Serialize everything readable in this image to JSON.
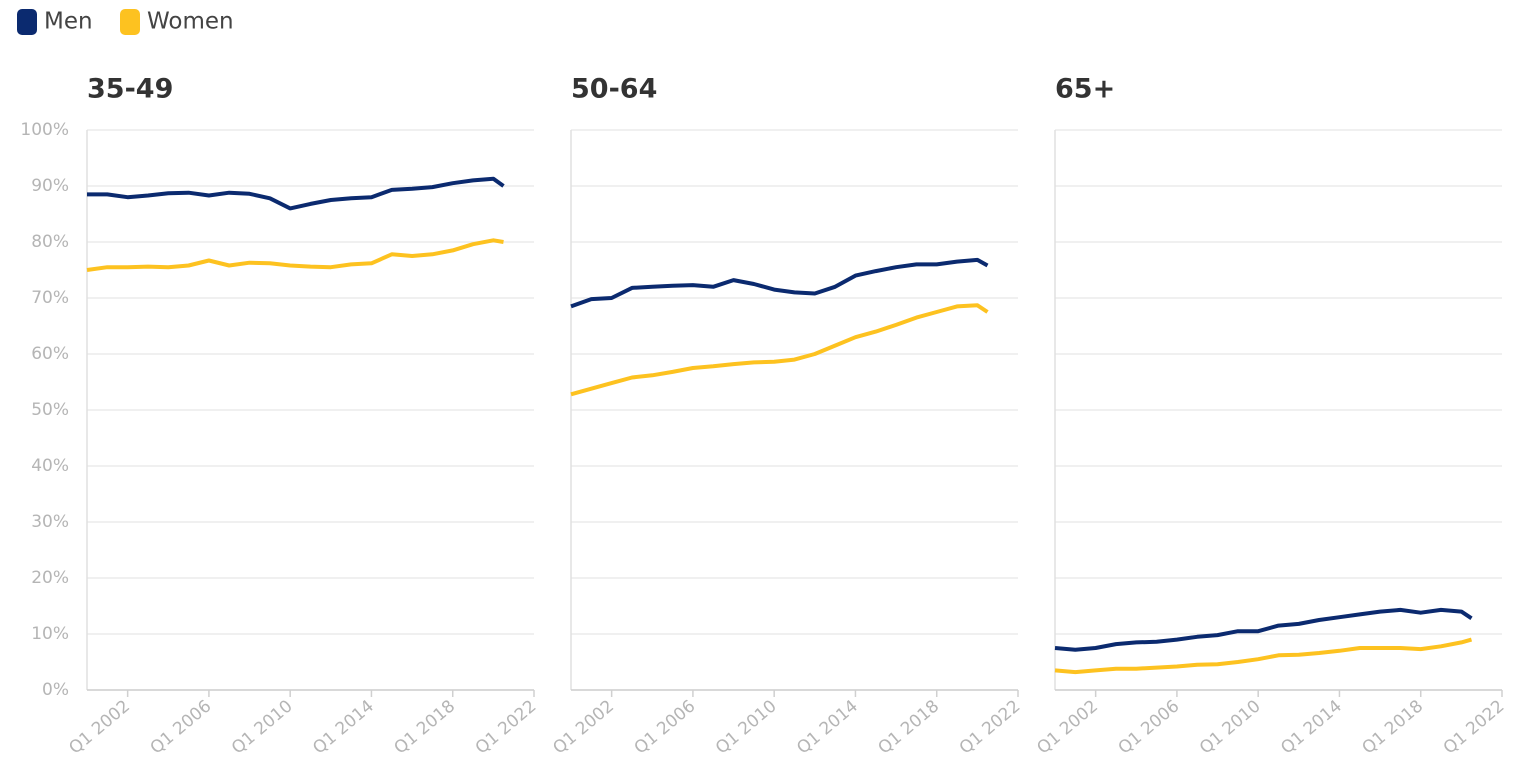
{
  "chart_data": [
    {
      "type": "line",
      "title": "35-49",
      "x": [
        2000,
        2001,
        2002,
        2003,
        2004,
        2005,
        2006,
        2007,
        2008,
        2009,
        2010,
        2011,
        2012,
        2013,
        2014,
        2015,
        2016,
        2017,
        2018,
        2019,
        2020,
        2020.5
      ],
      "series": [
        {
          "name": "Men",
          "color": "#0b2a6f",
          "values": [
            88.5,
            88.5,
            88,
            88.3,
            88.7,
            88.8,
            88.3,
            88.8,
            88.6,
            87.8,
            86,
            86.8,
            87.5,
            87.8,
            88,
            89.3,
            89.5,
            89.8,
            90.5,
            91,
            91.3,
            90
          ]
        },
        {
          "name": "Women",
          "color": "#fdc220",
          "values": [
            75,
            75.5,
            75.5,
            75.6,
            75.5,
            75.8,
            76.7,
            75.8,
            76.3,
            76.2,
            75.8,
            75.6,
            75.5,
            76,
            76.2,
            77.8,
            77.5,
            77.8,
            78.5,
            79.6,
            80.3,
            80
          ]
        }
      ],
      "xlim": [
        2000,
        2022
      ],
      "xticks": [
        {
          "value": 2002,
          "label": "Q1 2002"
        },
        {
          "value": 2006,
          "label": "Q1 2006"
        },
        {
          "value": 2010,
          "label": "Q1 2010"
        },
        {
          "value": 2014,
          "label": "Q1 2014"
        },
        {
          "value": 2018,
          "label": "Q1 2018"
        },
        {
          "value": 2022,
          "label": "Q1 2022"
        }
      ],
      "ylim": [
        0,
        100
      ],
      "yticks": [
        {
          "value": 0,
          "label": "0%"
        },
        {
          "value": 10,
          "label": "10%"
        },
        {
          "value": 20,
          "label": "20%"
        },
        {
          "value": 30,
          "label": "30%"
        },
        {
          "value": 40,
          "label": "40%"
        },
        {
          "value": 50,
          "label": "50%"
        },
        {
          "value": 60,
          "label": "60%"
        },
        {
          "value": 70,
          "label": "70%"
        },
        {
          "value": 80,
          "label": "80%"
        },
        {
          "value": 90,
          "label": "90%"
        },
        {
          "value": 100,
          "label": "100%"
        }
      ],
      "grid": true
    },
    {
      "type": "line",
      "title": "50-64",
      "x": [
        2000,
        2001,
        2002,
        2003,
        2004,
        2005,
        2006,
        2007,
        2008,
        2009,
        2010,
        2011,
        2012,
        2013,
        2014,
        2015,
        2016,
        2017,
        2018,
        2019,
        2020,
        2020.5
      ],
      "series": [
        {
          "name": "Men",
          "color": "#0b2a6f",
          "values": [
            68.5,
            69.8,
            70,
            71.8,
            72,
            72.2,
            72.3,
            72,
            73.2,
            72.5,
            71.5,
            71,
            70.8,
            72,
            74,
            74.8,
            75.5,
            76,
            76,
            76.5,
            76.8,
            75.8
          ]
        },
        {
          "name": "Women",
          "color": "#fdc220",
          "values": [
            52.8,
            53.8,
            54.8,
            55.8,
            56.2,
            56.8,
            57.5,
            57.8,
            58.2,
            58.5,
            58.6,
            59,
            60,
            61.5,
            63,
            64,
            65.2,
            66.5,
            67.5,
            68.5,
            68.7,
            67.5
          ]
        }
      ],
      "xlim": [
        2000,
        2022
      ],
      "xticks": [
        {
          "value": 2002,
          "label": "Q1 2002"
        },
        {
          "value": 2006,
          "label": "Q1 2006"
        },
        {
          "value": 2010,
          "label": "Q1 2010"
        },
        {
          "value": 2014,
          "label": "Q1 2014"
        },
        {
          "value": 2018,
          "label": "Q1 2018"
        },
        {
          "value": 2022,
          "label": "Q1 2022"
        }
      ],
      "ylim": [
        0,
        100
      ],
      "yticks": [
        0,
        10,
        20,
        30,
        40,
        50,
        60,
        70,
        80,
        90,
        100
      ],
      "grid": true
    },
    {
      "type": "line",
      "title": "65+",
      "x": [
        2000,
        2001,
        2002,
        2003,
        2004,
        2005,
        2006,
        2007,
        2008,
        2009,
        2010,
        2011,
        2012,
        2013,
        2014,
        2015,
        2016,
        2017,
        2018,
        2019,
        2020,
        2020.5
      ],
      "series": [
        {
          "name": "Men",
          "color": "#0b2a6f",
          "values": [
            7.5,
            7.2,
            7.5,
            8.2,
            8.5,
            8.6,
            9,
            9.5,
            9.8,
            10.5,
            10.5,
            11.5,
            11.8,
            12.5,
            13,
            13.5,
            14,
            14.3,
            13.8,
            14.3,
            14,
            12.8
          ]
        },
        {
          "name": "Women",
          "color": "#fdc220",
          "values": [
            3.5,
            3.2,
            3.5,
            3.8,
            3.8,
            4,
            4.2,
            4.5,
            4.6,
            5,
            5.5,
            6.2,
            6.3,
            6.6,
            7,
            7.5,
            7.5,
            7.5,
            7.3,
            7.8,
            8.5,
            9
          ]
        }
      ],
      "xlim": [
        2000,
        2022
      ],
      "xticks": [
        {
          "value": 2002,
          "label": "Q1 2002"
        },
        {
          "value": 2006,
          "label": "Q1 2006"
        },
        {
          "value": 2010,
          "label": "Q1 2010"
        },
        {
          "value": 2014,
          "label": "Q1 2014"
        },
        {
          "value": 2018,
          "label": "Q1 2018"
        },
        {
          "value": 2022,
          "label": "Q1 2022"
        }
      ],
      "ylim": [
        0,
        100
      ],
      "yticks": [
        0,
        10,
        20,
        30,
        40,
        50,
        60,
        70,
        80,
        90,
        100
      ],
      "grid": true
    }
  ]
}
